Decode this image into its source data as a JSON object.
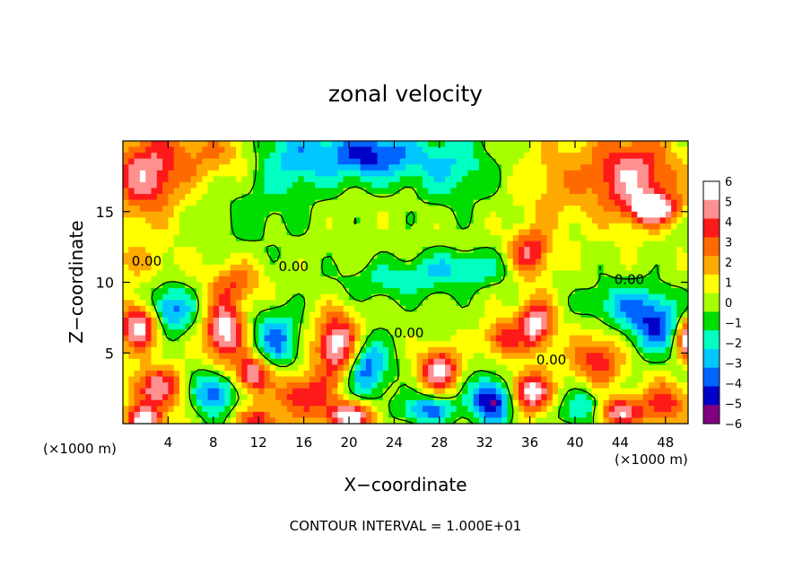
{
  "chart_data": {
    "type": "heatmap",
    "title": "zonal velocity",
    "xlabel": "X−coordinate",
    "ylabel": "Z−coordinate",
    "x_unit_left": "(×1000 m)",
    "x_unit_right": "(×1000 m)",
    "xlim": [
      0,
      50
    ],
    "ylim": [
      0,
      20
    ],
    "x_ticks": [
      4,
      8,
      12,
      16,
      20,
      24,
      28,
      32,
      36,
      40,
      44,
      48
    ],
    "x_tick_labels": [
      "4",
      "8",
      "12",
      "16",
      "20",
      "24",
      "28",
      "32",
      "36",
      "40",
      "44",
      "48"
    ],
    "y_ticks": [
      5,
      10,
      15
    ],
    "y_tick_labels": [
      "5",
      "10",
      "15"
    ],
    "colorbar": {
      "min": -6,
      "max": 6,
      "tick_values": [
        6,
        5,
        4,
        3,
        2,
        1,
        0,
        -1,
        -2,
        -3,
        -4,
        -5,
        -6
      ],
      "tick_labels": [
        "6",
        "5",
        "4",
        "3",
        "2",
        "1",
        "0",
        "−1",
        "−2",
        "−3",
        "−4",
        "−5",
        "−6"
      ],
      "colors": [
        "#ffffff",
        "#ff9090",
        "#ff1a1a",
        "#ff6a00",
        "#ffaa00",
        "#ffff00",
        "#a8ff00",
        "#00dd00",
        "#00ffc0",
        "#00c8ff",
        "#0064ff",
        "#0000c8",
        "#800080"
      ]
    },
    "contour_labels": [
      {
        "text": "0.00",
        "x": 2.1,
        "z": 11.5
      },
      {
        "text": "0.00",
        "x": 15.1,
        "z": 11.1
      },
      {
        "text": "0.00",
        "x": 25.3,
        "z": 6.4
      },
      {
        "text": "0.00",
        "x": 37.9,
        "z": 4.5
      },
      {
        "text": "0.00",
        "x": 44.8,
        "z": 10.2
      }
    ],
    "contour_interval_text": "CONTOUR INTERVAL = 1.000E+01",
    "field_blobs": [
      {
        "x": 2.0,
        "z": 17.5,
        "v": 5.0,
        "sx": 3.0,
        "sz": 3.0
      },
      {
        "x": 8.0,
        "z": 19.0,
        "v": 2.5,
        "sx": 4.5,
        "sz": 2.0
      },
      {
        "x": 15.0,
        "z": 19.0,
        "v": -3.0,
        "sx": 4.0,
        "sz": 2.5
      },
      {
        "x": 22.0,
        "z": 19.0,
        "v": -4.8,
        "sx": 4.0,
        "sz": 1.8
      },
      {
        "x": 29.0,
        "z": 18.2,
        "v": -2.5,
        "sx": 3.5,
        "sz": 2.5
      },
      {
        "x": 12.0,
        "z": 15.0,
        "v": -1.0,
        "sx": 4.0,
        "sz": 3.0
      },
      {
        "x": 38.0,
        "z": 17.0,
        "v": 1.8,
        "sx": 3.0,
        "sz": 3.5
      },
      {
        "x": 45.0,
        "z": 17.5,
        "v": 5.2,
        "sx": 4.0,
        "sz": 3.0
      },
      {
        "x": 47.0,
        "z": 15.2,
        "v": 6.3,
        "sx": 2.0,
        "sz": 1.0
      },
      {
        "x": 36.0,
        "z": 12.0,
        "v": 4.5,
        "sx": 1.8,
        "sz": 1.7
      },
      {
        "x": 30.0,
        "z": 11.0,
        "v": -2.5,
        "sx": 4.5,
        "sz": 1.2
      },
      {
        "x": 24.0,
        "z": 10.0,
        "v": -1.8,
        "sx": 5.0,
        "sz": 1.3
      },
      {
        "x": 10.0,
        "z": 10.0,
        "v": 3.0,
        "sx": 2.5,
        "sz": 1.5
      },
      {
        "x": 1.5,
        "z": 11.5,
        "v": 1.5,
        "sx": 3.0,
        "sz": 1.5
      },
      {
        "x": 4.0,
        "z": 8.0,
        "v": -4.5,
        "sx": 2.2,
        "sz": 1.6
      },
      {
        "x": 1.5,
        "z": 7.0,
        "v": 6.5,
        "sx": 1.9,
        "sz": 1.7
      },
      {
        "x": 9.0,
        "z": 6.5,
        "v": 6.2,
        "sx": 1.8,
        "sz": 2.2
      },
      {
        "x": 11.5,
        "z": 3.5,
        "v": 6.0,
        "sx": 1.5,
        "sz": 1.3
      },
      {
        "x": 13.5,
        "z": 6.0,
        "v": -4.0,
        "sx": 2.0,
        "sz": 2.0
      },
      {
        "x": 19.0,
        "z": 5.5,
        "v": 6.5,
        "sx": 1.9,
        "sz": 2.3
      },
      {
        "x": 21.5,
        "z": 4.0,
        "v": -4.5,
        "sx": 2.0,
        "sz": 2.0
      },
      {
        "x": 16.0,
        "z": 2.0,
        "v": 4.5,
        "sx": 2.5,
        "sz": 1.5
      },
      {
        "x": 8.0,
        "z": 2.2,
        "v": -4.5,
        "sx": 2.0,
        "sz": 1.5
      },
      {
        "x": 3.0,
        "z": 2.5,
        "v": 5.0,
        "sx": 2.5,
        "sz": 1.5
      },
      {
        "x": 2.0,
        "z": 0.3,
        "v": 6.0,
        "sx": 1.6,
        "sz": 0.9
      },
      {
        "x": 12.0,
        "z": 0.2,
        "v": 4.0,
        "sx": 2.0,
        "sz": 1.0
      },
      {
        "x": 20.0,
        "z": 0.5,
        "v": 6.2,
        "sx": 2.2,
        "sz": 1.0
      },
      {
        "x": 28.0,
        "z": 3.8,
        "v": 6.2,
        "sx": 1.7,
        "sz": 1.4
      },
      {
        "x": 27.0,
        "z": 1.0,
        "v": -4.0,
        "sx": 2.5,
        "sz": 1.0
      },
      {
        "x": 32.0,
        "z": 2.0,
        "v": -2.0,
        "sx": 1.5,
        "sz": 1.5
      },
      {
        "x": 33.5,
        "z": 6.0,
        "v": 4.0,
        "sx": 1.5,
        "sz": 1.3
      },
      {
        "x": 36.5,
        "z": 7.0,
        "v": 6.0,
        "sx": 1.6,
        "sz": 1.8
      },
      {
        "x": 36.0,
        "z": 2.2,
        "v": 6.5,
        "sx": 1.8,
        "sz": 1.4
      },
      {
        "x": 33.0,
        "z": 1.5,
        "v": -4.5,
        "sx": 2.0,
        "sz": 1.5
      },
      {
        "x": 42.0,
        "z": 4.5,
        "v": 4.0,
        "sx": 2.5,
        "sz": 1.8
      },
      {
        "x": 43.5,
        "z": 0.8,
        "v": 6.0,
        "sx": 2.5,
        "sz": 1.0
      },
      {
        "x": 41.0,
        "z": 1.0,
        "v": -4.5,
        "sx": 2.0,
        "sz": 1.2
      },
      {
        "x": 47.0,
        "z": 7.0,
        "v": -4.5,
        "sx": 2.5,
        "sz": 2.0
      },
      {
        "x": 50.0,
        "z": 6.0,
        "v": 6.5,
        "sx": 1.0,
        "sz": 1.5
      },
      {
        "x": 48.0,
        "z": 1.5,
        "v": 4.0,
        "sx": 2.0,
        "sz": 1.5
      },
      {
        "x": 44.0,
        "z": 8.5,
        "v": -2.5,
        "sx": 3.0,
        "sz": 1.5
      }
    ]
  }
}
